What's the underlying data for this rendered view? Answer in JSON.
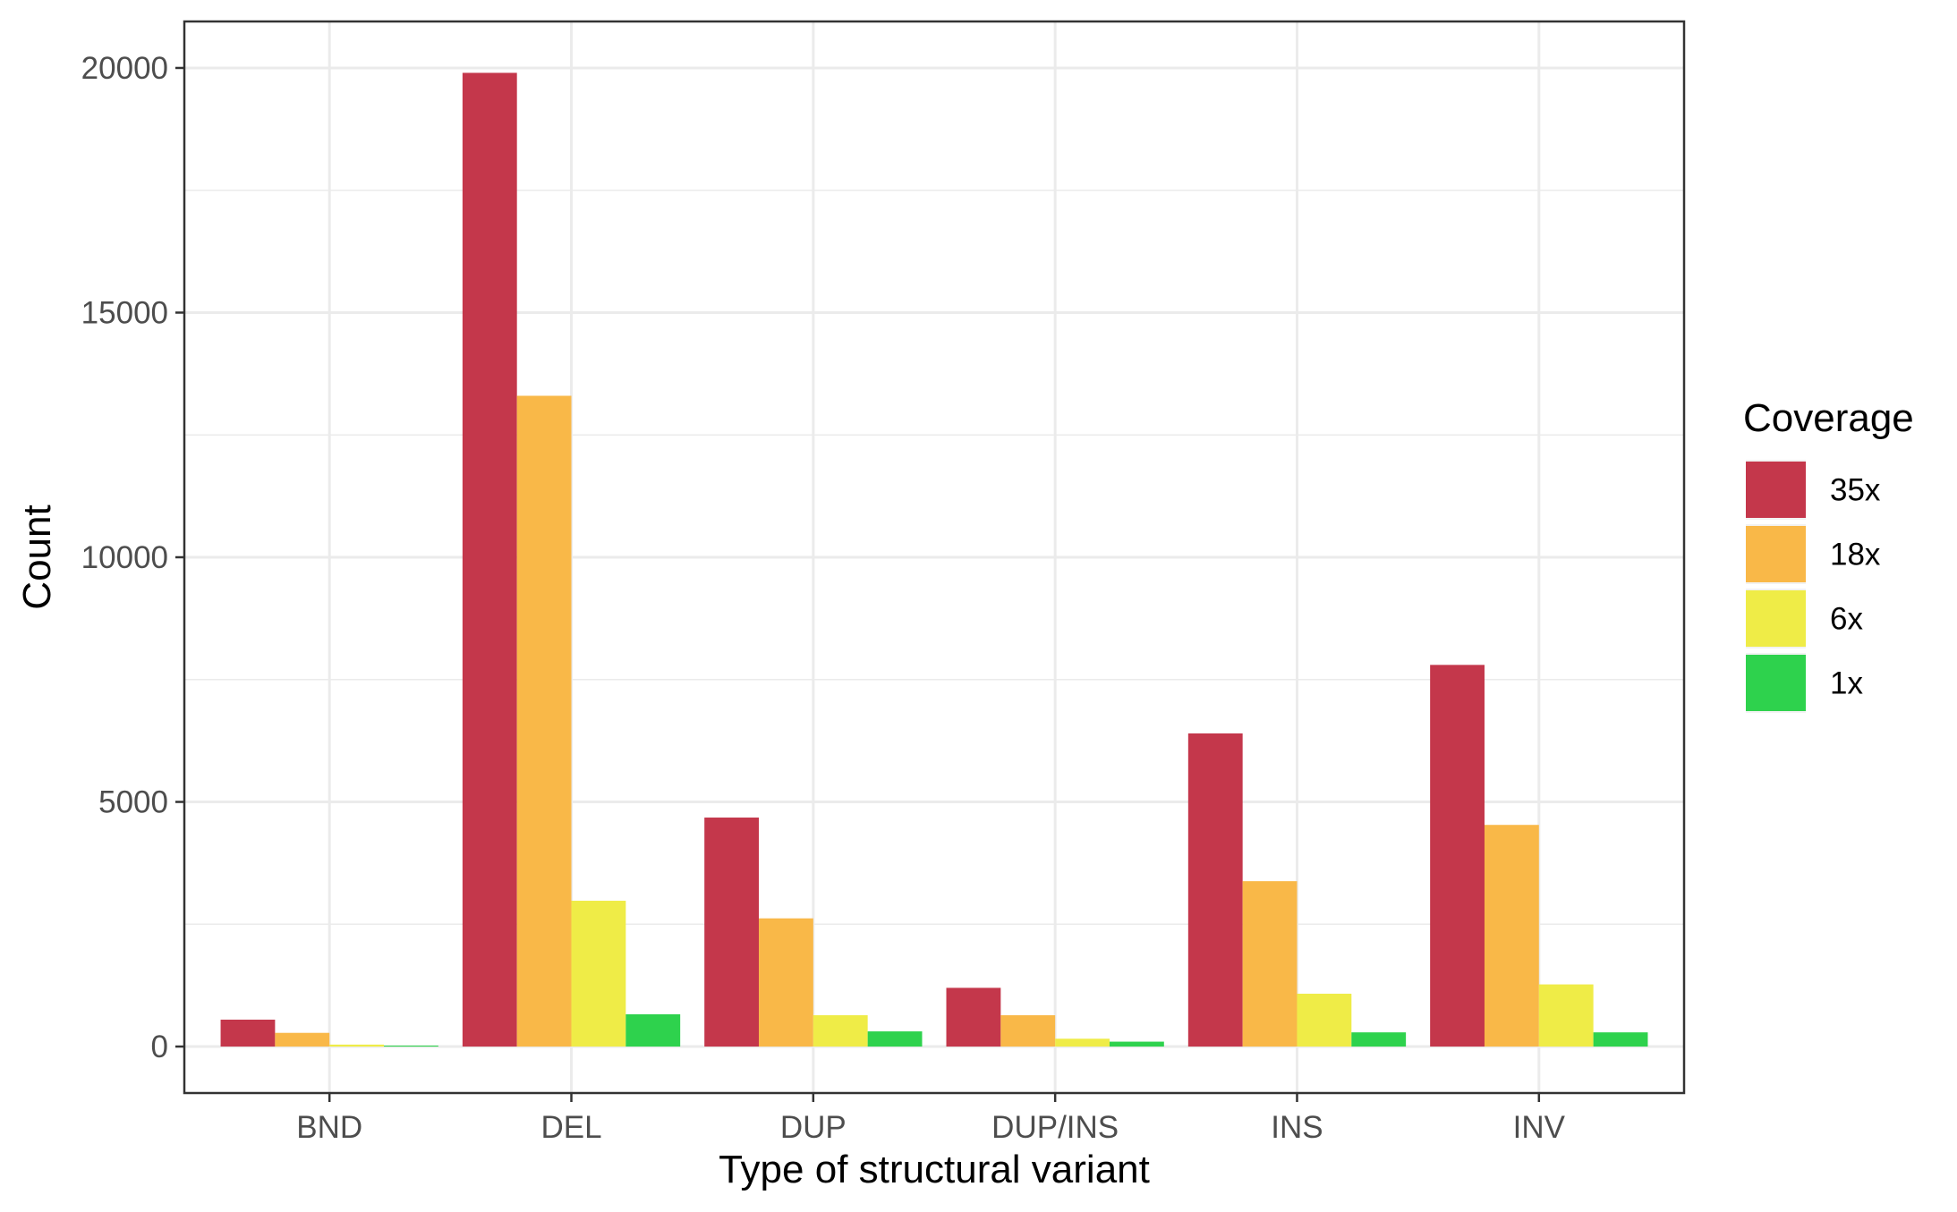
{
  "chart_data": {
    "type": "bar",
    "categories": [
      "BND",
      "DEL",
      "DUP",
      "DUP/INS",
      "INS",
      "INV"
    ],
    "series": [
      {
        "name": "35x",
        "color": "#C4374B",
        "values": [
          550,
          19900,
          4680,
          1200,
          6400,
          7800
        ]
      },
      {
        "name": "18x",
        "color": "#F9B848",
        "values": [
          280,
          13300,
          2620,
          640,
          3380,
          4530
        ]
      },
      {
        "name": "6x",
        "color": "#EFEC47",
        "values": [
          40,
          2980,
          640,
          160,
          1080,
          1270
        ]
      },
      {
        "name": "1x",
        "color": "#2ED24D",
        "values": [
          20,
          660,
          310,
          100,
          290,
          290
        ]
      }
    ],
    "xlabel": "Type of structural variant",
    "ylabel": "Count",
    "ylim": [
      -950,
      20950
    ],
    "yticks": [
      0,
      5000,
      10000,
      15000,
      20000
    ],
    "ytick_labels": [
      "0",
      "5000",
      "10000",
      "15000",
      "20000"
    ],
    "grid": true,
    "legend": {
      "title": "Coverage",
      "position": "right"
    }
  }
}
